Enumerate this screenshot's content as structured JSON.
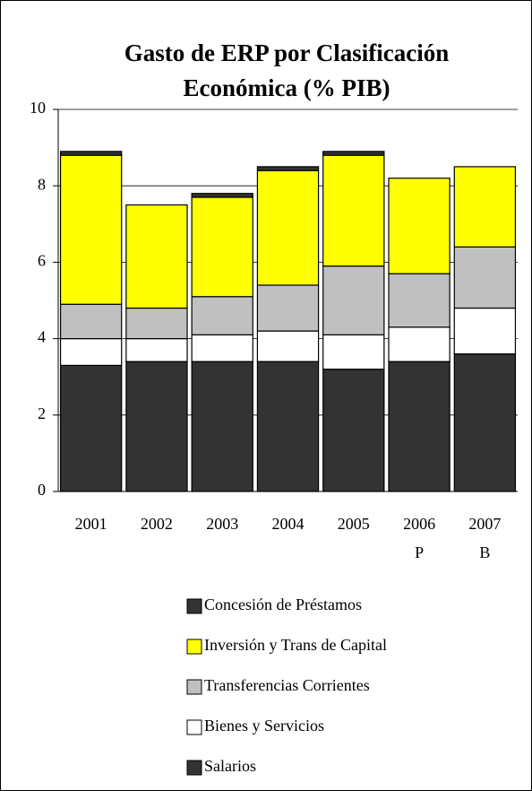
{
  "chart_data": {
    "type": "bar",
    "stacked": true,
    "title": [
      "Gasto de ERP por Clasificación",
      "Económica (% PIB)"
    ],
    "categories": [
      "2001",
      "2002",
      "2003",
      "2004",
      "2005",
      "2006 P",
      "2007 B"
    ],
    "series": [
      {
        "name": "Salarios",
        "color": "#333333",
        "values": [
          3.3,
          3.4,
          3.4,
          3.4,
          3.2,
          3.4,
          3.6
        ]
      },
      {
        "name": "Bienes y Servicios",
        "color": "#ffffff",
        "values": [
          0.7,
          0.6,
          0.7,
          0.8,
          0.9,
          0.9,
          1.2
        ]
      },
      {
        "name": "Transferencias Corrientes",
        "color": "#c0c0c0",
        "values": [
          0.9,
          0.8,
          1.0,
          1.2,
          1.8,
          1.4,
          1.6
        ]
      },
      {
        "name": "Inversión y Trans de Capital",
        "color": "#ffff00",
        "values": [
          3.9,
          2.7,
          2.6,
          3.0,
          2.9,
          2.5,
          2.1
        ]
      },
      {
        "name": "Concesión de Préstamos",
        "color": "#333333",
        "values": [
          0.1,
          0,
          0.1,
          0.1,
          0.1,
          0,
          0
        ]
      }
    ],
    "ylim": [
      0,
      10
    ],
    "yticks": [
      0,
      2,
      4,
      6,
      8,
      10
    ],
    "grid": true
  }
}
